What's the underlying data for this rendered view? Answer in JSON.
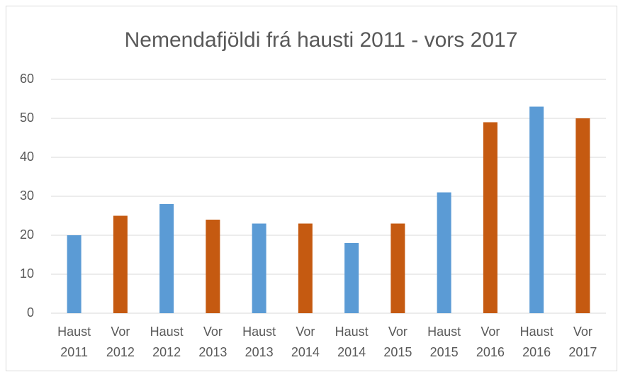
{
  "chart_data": {
    "type": "bar",
    "title": "Nemendafjöldi frá hausti 2011 - vors 2017",
    "categories": [
      [
        "Haust",
        "2011"
      ],
      [
        "Vor",
        "2012"
      ],
      [
        "Haust",
        "2012"
      ],
      [
        "Vor",
        "2013"
      ],
      [
        "Haust",
        "2013"
      ],
      [
        "Vor",
        "2014"
      ],
      [
        "Haust",
        "2014"
      ],
      [
        "Vor",
        "2015"
      ],
      [
        "Haust",
        "2015"
      ],
      [
        "Vor",
        "2016"
      ],
      [
        "Haust",
        "2016"
      ],
      [
        "Vor",
        "2017"
      ]
    ],
    "values": [
      20,
      25,
      28,
      24,
      23,
      23,
      18,
      23,
      31,
      49,
      53,
      50
    ],
    "colors": [
      "#5b9bd5",
      "#c55a11",
      "#5b9bd5",
      "#c55a11",
      "#5b9bd5",
      "#c55a11",
      "#5b9bd5",
      "#c55a11",
      "#5b9bd5",
      "#c55a11",
      "#5b9bd5",
      "#c55a11"
    ],
    "ylim": [
      0,
      60
    ],
    "yticks": [
      0,
      10,
      20,
      30,
      40,
      50,
      60
    ],
    "grid": true
  }
}
